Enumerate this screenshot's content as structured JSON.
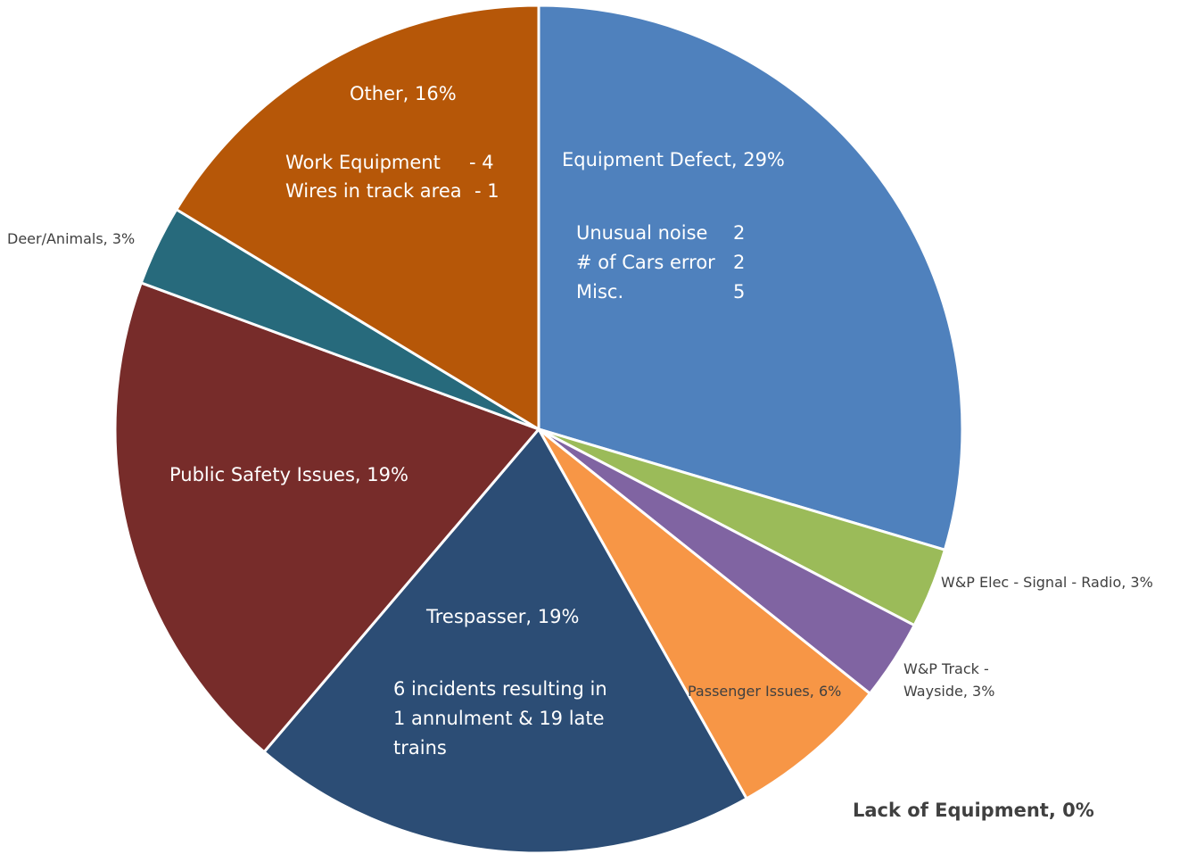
{
  "chart_data": {
    "type": "pie",
    "slices": [
      {
        "name": "Equipment Defect",
        "value": 29,
        "label": "Equipment Defect, 29%",
        "color": "#4F81BD",
        "details": [
          {
            "item": "Unusual noise",
            "count": "2"
          },
          {
            "item": "# of Cars error",
            "count": "2"
          },
          {
            "item": "Misc.",
            "count": "5"
          }
        ]
      },
      {
        "name": "W&P Elec - Signal - Radio",
        "value": 3,
        "label": "W&P Elec - Signal - Radio, 3%",
        "color": "#9BBB59"
      },
      {
        "name": "W&P Track - Wayside",
        "value": 3,
        "label_lines": [
          "W&P Track -",
          "Wayside, 3%"
        ],
        "color": "#8064A2"
      },
      {
        "name": "Passenger Issues",
        "value": 6,
        "label": "Passenger Issues, 6%",
        "color": "#F79646"
      },
      {
        "name": "Trespasser",
        "value": 19,
        "label": "Trespasser, 19%",
        "color": "#2C4D75",
        "details": [
          "6 incidents resulting in",
          "1 annulment & 19 late",
          "trains"
        ]
      },
      {
        "name": "Public Safety Issues",
        "value": 19,
        "label": "Public Safety Issues, 19%",
        "color": "#772C2A"
      },
      {
        "name": "Deer/Animals",
        "value": 3,
        "label": "Deer/Animals, 3%",
        "color": "#276A7C"
      },
      {
        "name": "Other",
        "value": 16,
        "label": "Other, 16%",
        "color": "#B65708",
        "details": [
          {
            "item": "Work Equipment",
            "count": "-  4"
          },
          {
            "item": "Wires in track area",
            "count": "- 1"
          }
        ]
      },
      {
        "name": "Lack of Equipment",
        "value": 0,
        "label": "Lack of Equipment, 0%",
        "color": "#4BACC6"
      }
    ]
  }
}
